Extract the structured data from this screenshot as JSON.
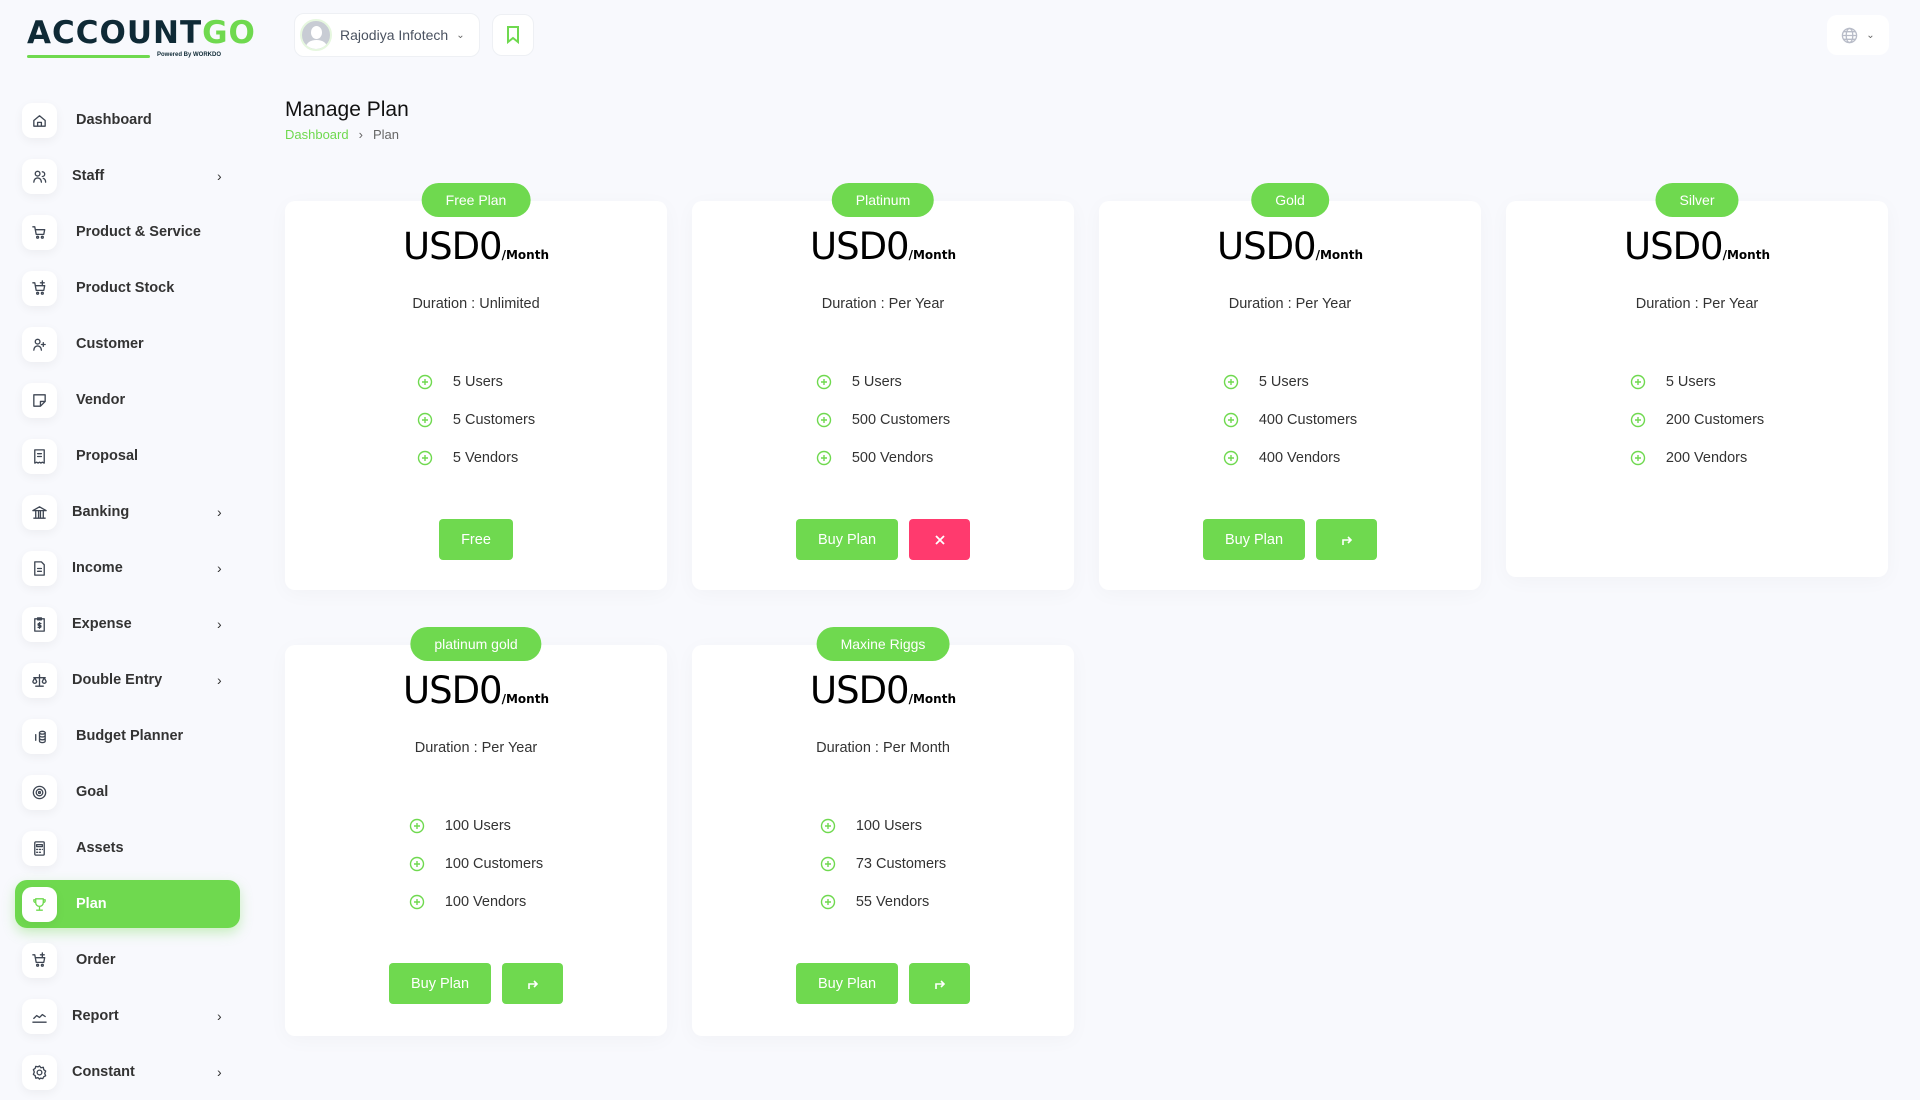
{
  "logo": {
    "text_main": "ACCOUNT",
    "text_accent": "GO",
    "powered": "Powered By WORKDO"
  },
  "header": {
    "company": "Rajodiya Infotech"
  },
  "sidebar": {
    "items": [
      {
        "label": "Dashboard",
        "icon": "home-icon",
        "sub": false
      },
      {
        "label": "Staff",
        "icon": "users-icon",
        "sub": true
      },
      {
        "label": "Product & Service",
        "icon": "cart-icon",
        "sub": false
      },
      {
        "label": "Product Stock",
        "icon": "cart-plus-icon",
        "sub": false
      },
      {
        "label": "Customer",
        "icon": "user-plus-icon",
        "sub": false
      },
      {
        "label": "Vendor",
        "icon": "note-icon",
        "sub": false
      },
      {
        "label": "Proposal",
        "icon": "receipt-icon",
        "sub": false
      },
      {
        "label": "Banking",
        "icon": "bank-icon",
        "sub": true
      },
      {
        "label": "Income",
        "icon": "file-invoice-icon",
        "sub": true
      },
      {
        "label": "Expense",
        "icon": "clipboard-dollar-icon",
        "sub": true
      },
      {
        "label": "Double Entry",
        "icon": "scale-icon",
        "sub": true
      },
      {
        "label": "Budget Planner",
        "icon": "coins-icon",
        "sub": false
      },
      {
        "label": "Goal",
        "icon": "target-icon",
        "sub": false
      },
      {
        "label": "Assets",
        "icon": "calculator-icon",
        "sub": false
      },
      {
        "label": "Plan",
        "icon": "trophy-icon",
        "sub": false,
        "active": true
      },
      {
        "label": "Order",
        "icon": "cart-plus-icon",
        "sub": false
      },
      {
        "label": "Report",
        "icon": "chart-line-icon",
        "sub": true
      },
      {
        "label": "Constant",
        "icon": "gear-icon",
        "sub": true
      }
    ]
  },
  "page": {
    "title": "Manage Plan",
    "breadcrumb": [
      "Dashboard",
      "Plan"
    ]
  },
  "colors": {
    "accent": "#6fd94f",
    "danger": "#ff3a6e"
  },
  "plans": [
    {
      "name": "Free Plan",
      "price": "USD0",
      "period": "/Month",
      "duration": "Duration : Unlimited",
      "features": [
        "5 Users",
        "5 Customers",
        "5 Vendors"
      ],
      "buttons": [
        {
          "label": "Free",
          "type": "text"
        }
      ]
    },
    {
      "name": "Platinum",
      "price": "USD0",
      "period": "/Month",
      "duration": "Duration : Per Year",
      "features": [
        "5 Users",
        "500 Customers",
        "500 Vendors"
      ],
      "buttons": [
        {
          "label": "Buy Plan",
          "type": "text"
        },
        {
          "icon": "close-icon",
          "type": "danger"
        }
      ]
    },
    {
      "name": "Gold",
      "price": "USD0",
      "period": "/Month",
      "duration": "Duration : Per Year",
      "features": [
        "5 Users",
        "400 Customers",
        "400 Vendors"
      ],
      "buttons": [
        {
          "label": "Buy Plan",
          "type": "text"
        },
        {
          "icon": "share-icon",
          "type": "icon"
        }
      ]
    },
    {
      "name": "Silver",
      "price": "USD0",
      "period": "/Month",
      "duration": "Duration : Per Year",
      "features": [
        "5 Users",
        "200 Customers",
        "200 Vendors"
      ],
      "buttons": []
    },
    {
      "name": "platinum gold",
      "price": "USD0",
      "period": "/Month",
      "duration": "Duration : Per Year",
      "features": [
        "100 Users",
        "100 Customers",
        "100 Vendors"
      ],
      "buttons": [
        {
          "label": "Buy Plan",
          "type": "text"
        },
        {
          "icon": "share-icon",
          "type": "icon"
        }
      ]
    },
    {
      "name": "Maxine Riggs",
      "price": "USD0",
      "period": "/Month",
      "duration": "Duration : Per Month",
      "features": [
        "100 Users",
        "73 Customers",
        "55 Vendors"
      ],
      "buttons": [
        {
          "label": "Buy Plan",
          "type": "text"
        },
        {
          "icon": "share-icon",
          "type": "icon"
        }
      ]
    }
  ]
}
